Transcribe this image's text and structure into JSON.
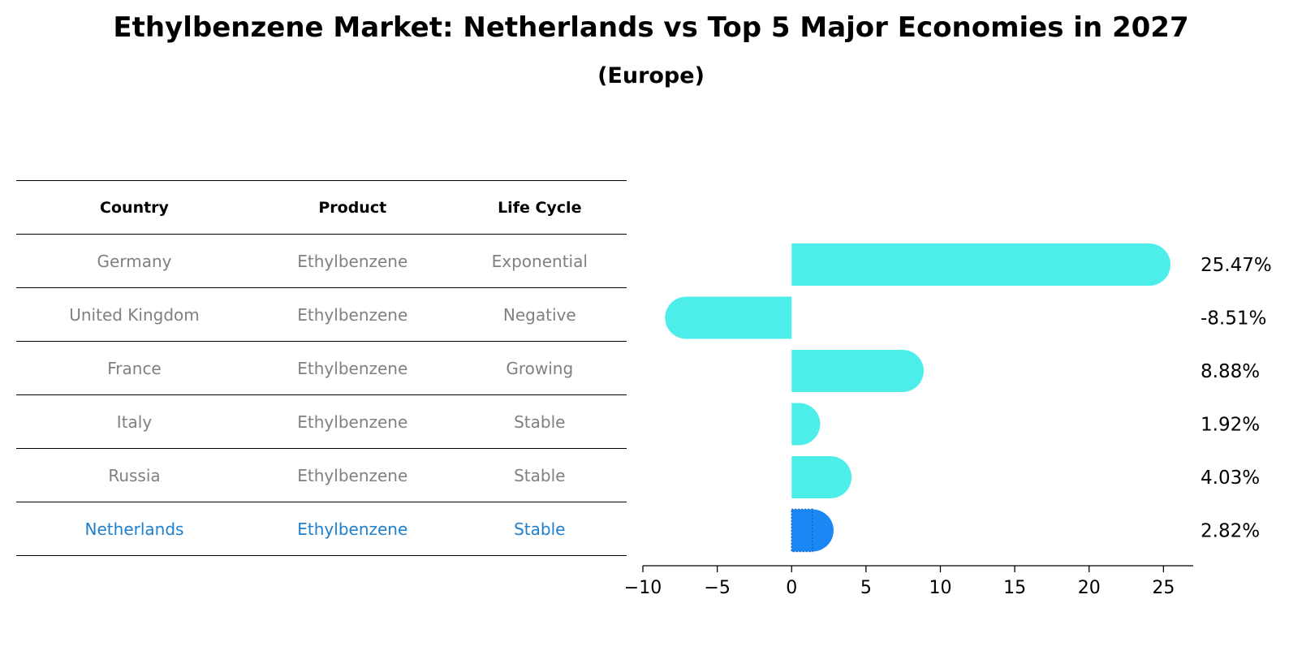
{
  "title": "Ethylbenzene Market: Netherlands vs Top 5 Major Economies in 2027",
  "subtitle": "(Europe)",
  "table": {
    "headers": [
      "Country",
      "Product",
      "Life Cycle"
    ],
    "rows": [
      [
        "Germany",
        "Ethylbenzene",
        "Exponential"
      ],
      [
        "United Kingdom",
        "Ethylbenzene",
        "Negative"
      ],
      [
        "France",
        "Ethylbenzene",
        "Growing"
      ],
      [
        "Italy",
        "Ethylbenzene",
        "Stable"
      ],
      [
        "Russia",
        "Ethylbenzene",
        "Stable"
      ],
      [
        "Netherlands",
        "Ethylbenzene",
        "Stable"
      ]
    ]
  },
  "colors": {
    "bar": "#4deeea",
    "highlight": "#1a87f5",
    "highlight_text": "#1f7fcc",
    "muted_text": "#808080"
  },
  "chart_data": {
    "type": "bar",
    "orientation": "horizontal",
    "categories": [
      "Germany",
      "United Kingdom",
      "France",
      "Italy",
      "Russia",
      "Netherlands"
    ],
    "values": [
      25.47,
      -8.51,
      8.88,
      1.92,
      4.03,
      2.82
    ],
    "labels": [
      "25.47%",
      "-8.51%",
      "8.88%",
      "1.92%",
      "4.03%",
      "2.82%"
    ],
    "highlight": "Netherlands",
    "xlim": [
      -10,
      27
    ],
    "xticks": [
      -10,
      -5,
      0,
      5,
      10,
      15,
      20,
      25
    ],
    "xticklabels": [
      "−10",
      "−5",
      "0",
      "5",
      "10",
      "15",
      "20",
      "25"
    ]
  }
}
